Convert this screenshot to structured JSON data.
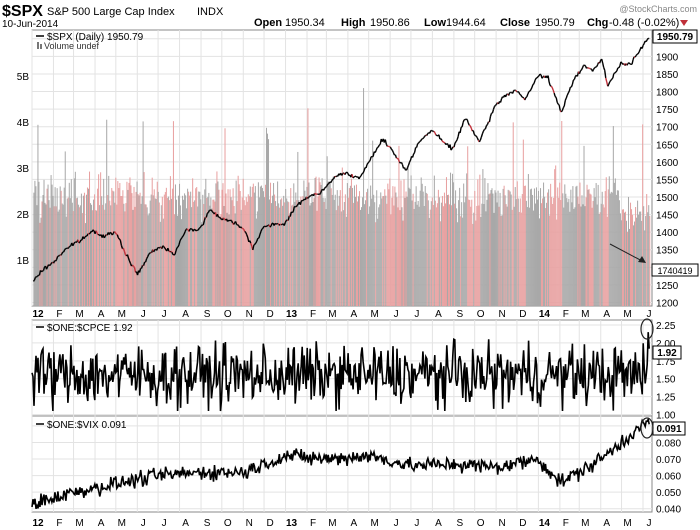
{
  "header": {
    "symbol": "$SPX",
    "name": "S&P 500 Large Cap Index",
    "exchange": "INDX",
    "date": "10-Jun-2014",
    "open_label": "Open",
    "open": "1950.34",
    "high_label": "High",
    "high": "1950.86",
    "low_label": "Low",
    "low": "1944.64",
    "close_label": "Close",
    "close": "1950.79",
    "chg_label": "Chg",
    "chg": "-0.48 (-0.02%)",
    "watermark": "@StockCharts.com"
  },
  "colors": {
    "price_up": "#000000",
    "price_down": "#c0303a",
    "volume_up": "#a8a8a8",
    "volume_down": "#e8a0a0",
    "grid": "#e3e3e3",
    "panel_border": "#888888",
    "annotation": "#222222"
  },
  "chart_data": [
    {
      "type": "line",
      "panel": "price",
      "series_label": "$SPX (Daily) 1950.79",
      "volume_label": "Volume undef",
      "last_value_tag": "1950.79",
      "volume_value_tag": "1740419",
      "ylim": [
        1190,
        1975
      ],
      "y_ticks": [
        1200,
        1250,
        1300,
        1350,
        1400,
        1450,
        1500,
        1550,
        1600,
        1650,
        1700,
        1750,
        1800,
        1850,
        1900,
        1950
      ],
      "volume_ylim": [
        0,
        6
      ],
      "volume_ticks": [
        "1B",
        "2B",
        "3B",
        "4B",
        "5B"
      ],
      "volume_tick_values": [
        1,
        2,
        3,
        4,
        5
      ],
      "x_months": [
        "12",
        "F",
        "M",
        "A",
        "M",
        "J",
        "J",
        "A",
        "S",
        "O",
        "N",
        "D",
        "13",
        "F",
        "M",
        "A",
        "M",
        "J",
        "J",
        "A",
        "S",
        "O",
        "N",
        "D",
        "14",
        "F",
        "M",
        "A",
        "M",
        "J"
      ],
      "x": [
        "2012-01",
        "2012-02",
        "2012-03",
        "2012-04",
        "2012-05",
        "2012-06",
        "2012-07",
        "2012-08",
        "2012-09",
        "2012-10",
        "2012-11",
        "2012-12",
        "2013-01",
        "2013-02",
        "2013-03",
        "2013-04",
        "2013-05",
        "2013-06",
        "2013-07",
        "2013-08",
        "2013-09",
        "2013-10",
        "2013-11",
        "2013-12",
        "2014-01",
        "2014-02",
        "2014-03",
        "2014-04",
        "2014-05",
        "2014-06"
      ],
      "points": [
        [
          "2012-01-03",
          1260
        ],
        [
          "2012-01-15",
          1290
        ],
        [
          "2012-02-01",
          1315
        ],
        [
          "2012-02-20",
          1355
        ],
        [
          "2012-03-10",
          1375
        ],
        [
          "2012-03-30",
          1405
        ],
        [
          "2012-04-10",
          1390
        ],
        [
          "2012-04-30",
          1400
        ],
        [
          "2012-05-15",
          1340
        ],
        [
          "2012-06-01",
          1280
        ],
        [
          "2012-06-20",
          1340
        ],
        [
          "2012-07-05",
          1360
        ],
        [
          "2012-07-25",
          1340
        ],
        [
          "2012-08-10",
          1405
        ],
        [
          "2012-08-31",
          1410
        ],
        [
          "2012-09-14",
          1465
        ],
        [
          "2012-09-30",
          1440
        ],
        [
          "2012-10-15",
          1430
        ],
        [
          "2012-10-31",
          1415
        ],
        [
          "2012-11-15",
          1355
        ],
        [
          "2012-11-30",
          1415
        ],
        [
          "2012-12-15",
          1420
        ],
        [
          "2012-12-31",
          1425
        ],
        [
          "2013-01-15",
          1470
        ],
        [
          "2013-01-31",
          1500
        ],
        [
          "2013-02-20",
          1510
        ],
        [
          "2013-03-15",
          1560
        ],
        [
          "2013-03-31",
          1570
        ],
        [
          "2013-04-18",
          1550
        ],
        [
          "2013-04-30",
          1595
        ],
        [
          "2013-05-21",
          1665
        ],
        [
          "2013-06-05",
          1630
        ],
        [
          "2013-06-24",
          1575
        ],
        [
          "2013-07-10",
          1650
        ],
        [
          "2013-07-31",
          1690
        ],
        [
          "2013-08-15",
          1660
        ],
        [
          "2013-08-30",
          1635
        ],
        [
          "2013-09-18",
          1725
        ],
        [
          "2013-10-08",
          1655
        ],
        [
          "2013-10-31",
          1760
        ],
        [
          "2013-11-15",
          1790
        ],
        [
          "2013-11-30",
          1805
        ],
        [
          "2013-12-13",
          1775
        ],
        [
          "2013-12-31",
          1845
        ],
        [
          "2014-01-15",
          1840
        ],
        [
          "2014-02-03",
          1740
        ],
        [
          "2014-02-20",
          1830
        ],
        [
          "2014-03-07",
          1875
        ],
        [
          "2014-03-20",
          1860
        ],
        [
          "2014-04-03",
          1890
        ],
        [
          "2014-04-11",
          1815
        ],
        [
          "2014-04-30",
          1880
        ],
        [
          "2014-05-15",
          1880
        ],
        [
          "2014-05-30",
          1925
        ],
        [
          "2014-06-10",
          1950.79
        ]
      ],
      "volume_regime_annotation": "arrow"
    },
    {
      "type": "line",
      "panel": "indicator",
      "series_label": "$ONE:$CPCE 1.92",
      "last_value_tag": "1.92",
      "ylim": [
        0.98,
        2.32
      ],
      "y_ticks": [
        1.0,
        1.25,
        1.5,
        1.75,
        2.0,
        2.25
      ],
      "y_tick_labels": [
        "1.00",
        "1.25",
        "1.50",
        "1.75",
        "2.00",
        "2.25"
      ],
      "typical_range": [
        1.05,
        2.05
      ],
      "mean": 1.55,
      "end_values": [
        1.55,
        1.7,
        2.15,
        1.92
      ]
    },
    {
      "type": "line",
      "panel": "indicator",
      "series_label": "$ONE:$VIX 0.091",
      "last_value_tag": "0.091",
      "ylim": [
        0.038,
        0.096
      ],
      "y_ticks": [
        0.04,
        0.05,
        0.06,
        0.07,
        0.08,
        0.09
      ],
      "y_tick_labels": [
        "0.040",
        "0.050",
        "0.060",
        "0.070",
        "0.080",
        "0.090"
      ],
      "trend": [
        [
          "2012-01",
          0.043
        ],
        [
          "2012-03",
          0.05
        ],
        [
          "2012-05",
          0.055
        ],
        [
          "2012-07",
          0.06
        ],
        [
          "2012-09",
          0.062
        ],
        [
          "2012-11",
          0.062
        ],
        [
          "2013-01",
          0.072
        ],
        [
          "2013-03",
          0.07
        ],
        [
          "2013-05",
          0.072
        ],
        [
          "2013-07",
          0.066
        ],
        [
          "2013-09",
          0.067
        ],
        [
          "2013-11",
          0.065
        ],
        [
          "2014-01",
          0.07
        ],
        [
          "2014-02",
          0.056
        ],
        [
          "2014-03",
          0.062
        ],
        [
          "2014-04",
          0.07
        ],
        [
          "2014-05",
          0.08
        ],
        [
          "2014-06",
          0.091
        ]
      ]
    }
  ],
  "bottom_months": [
    "12",
    "F",
    "M",
    "A",
    "M",
    "J",
    "J",
    "A",
    "S",
    "O",
    "N",
    "D",
    "13",
    "F",
    "M",
    "A",
    "M",
    "J",
    "J",
    "A",
    "S",
    "O",
    "N",
    "D",
    "14",
    "F",
    "M",
    "A",
    "M",
    "J"
  ]
}
